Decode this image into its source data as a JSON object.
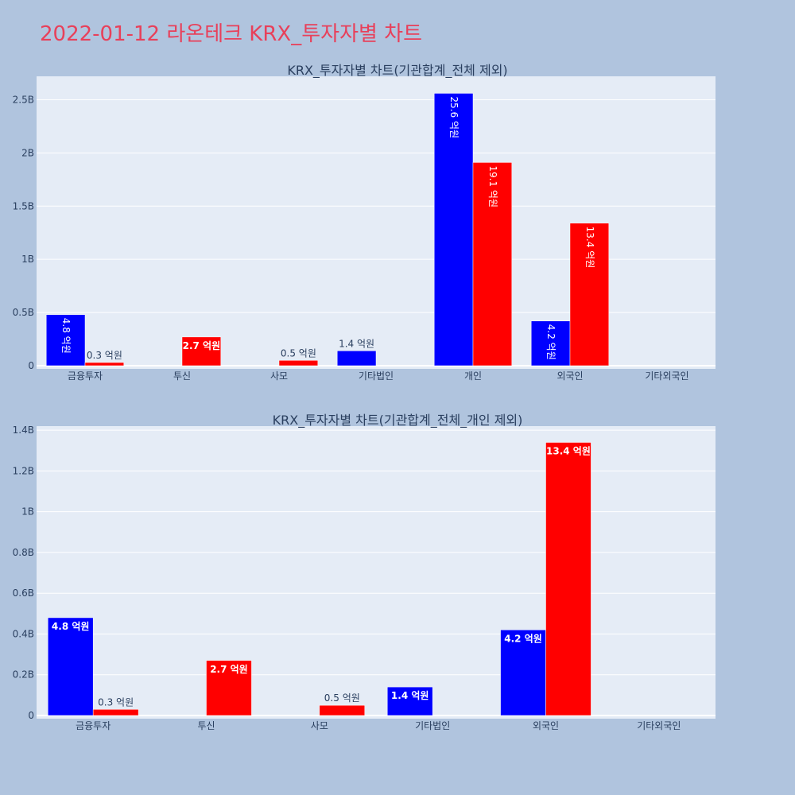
{
  "page_title": "2022-01-12 라온테크 KRX_투자자별 차트",
  "colors": {
    "buy": "#0000ff",
    "sell": "#ff0000",
    "plot_bg": "#e5ecf6",
    "page_bg": "#b0c4de",
    "title": "#e8405a"
  },
  "chart_data": [
    {
      "type": "bar",
      "title": "KRX_투자자별 차트(기관합계_전체 제외)",
      "categories": [
        "금융투자",
        "투신",
        "사모",
        "기타법인",
        "개인",
        "외국인",
        "기타외국인"
      ],
      "series": [
        {
          "color": "#0000ff",
          "values": [
            480000000,
            0,
            0,
            140000000,
            2560000000,
            420000000,
            0
          ],
          "labels": [
            "4.8 억원",
            "",
            "",
            "1.4 억원",
            "25.6 억원",
            "4.2 억원",
            ""
          ]
        },
        {
          "color": "#ff0000",
          "values": [
            30000000,
            270000000,
            50000000,
            0,
            1910000000,
            1340000000,
            0
          ],
          "labels": [
            "0.3 억원",
            "2.7 억원",
            "0.5 억원",
            "",
            "19.1 억원",
            "13.4 억원",
            ""
          ]
        }
      ],
      "ylim": [
        0,
        2720000000
      ],
      "yticks": [
        0,
        500000000,
        1000000000,
        1500000000,
        2000000000,
        2500000000
      ],
      "ytick_labels": [
        "0",
        "0.5B",
        "1B",
        "1.5B",
        "2B",
        "2.5B"
      ],
      "grid": true
    },
    {
      "type": "bar",
      "title": "KRX_투자자별 차트(기관합계_전체_개인 제외)",
      "categories": [
        "금융투자",
        "투신",
        "사모",
        "기타법인",
        "외국인",
        "기타외국인"
      ],
      "series": [
        {
          "color": "#0000ff",
          "values": [
            480000000,
            0,
            0,
            140000000,
            420000000,
            0
          ],
          "labels": [
            "4.8 억원",
            "",
            "",
            "1.4 억원",
            "4.2 억원",
            ""
          ]
        },
        {
          "color": "#ff0000",
          "values": [
            30000000,
            270000000,
            50000000,
            0,
            1340000000,
            0
          ],
          "labels": [
            "0.3 억원",
            "2.7 억원",
            "0.5 억원",
            "",
            "13.4 억원",
            ""
          ]
        }
      ],
      "ylim": [
        0,
        1420000000
      ],
      "yticks": [
        0,
        200000000,
        400000000,
        600000000,
        800000000,
        1000000000,
        1200000000,
        1400000000
      ],
      "ytick_labels": [
        "0",
        "0.2B",
        "0.4B",
        "0.6B",
        "0.8B",
        "1B",
        "1.2B",
        "1.4B"
      ],
      "grid": true
    }
  ]
}
